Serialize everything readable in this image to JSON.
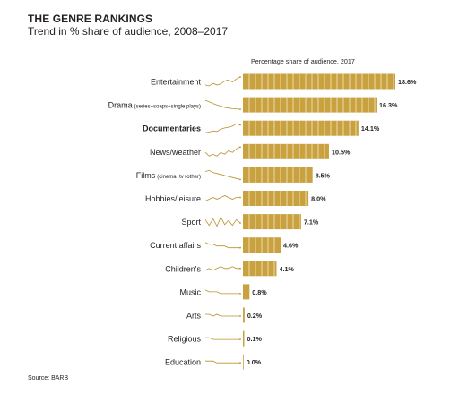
{
  "title": "THE GENRE RANKINGS",
  "subtitle": "Trend in % share of audience, 2008–2017",
  "source": "Source: BARB",
  "colors": {
    "bar": "#c9a23f",
    "bar_divider": "#ffffff",
    "spark": "#b8922f",
    "text": "#231f20"
  },
  "chart_data": {
    "type": "bar",
    "orientation": "horizontal",
    "title": "Percentage share of audience, 2017",
    "value_format": "{v}%",
    "xlim": [
      0,
      20
    ],
    "categories": [
      {
        "label": "Entertainment",
        "note": "",
        "bold": false
      },
      {
        "label": "Drama",
        "note": "(series+soaps+single plays)",
        "bold": false
      },
      {
        "label": "Documentaries",
        "note": "",
        "bold": true
      },
      {
        "label": "News/weather",
        "note": "",
        "bold": false
      },
      {
        "label": "Films",
        "note": "(cinema+tv+other)",
        "bold": false
      },
      {
        "label": "Hobbies/leisure",
        "note": "",
        "bold": false
      },
      {
        "label": "Sport",
        "note": "",
        "bold": false
      },
      {
        "label": "Current affairs",
        "note": "",
        "bold": false
      },
      {
        "label": "Children's",
        "note": "",
        "bold": false
      },
      {
        "label": "Music",
        "note": "",
        "bold": false
      },
      {
        "label": "Arts",
        "note": "",
        "bold": false
      },
      {
        "label": "Religious",
        "note": "",
        "bold": false
      },
      {
        "label": "Education",
        "note": "",
        "bold": false
      }
    ],
    "values": [
      18.6,
      16.3,
      14.1,
      10.5,
      8.5,
      8.0,
      7.1,
      4.6,
      4.1,
      0.8,
      0.2,
      0.1,
      0.0
    ],
    "trend_years": [
      2008,
      2009,
      2010,
      2011,
      2012,
      2013,
      2014,
      2015,
      2016,
      2017
    ],
    "trends": [
      [
        17.0,
        16.8,
        17.3,
        17.0,
        17.2,
        17.8,
        18.0,
        17.6,
        18.2,
        18.6
      ],
      [
        20.5,
        19.8,
        19.0,
        18.3,
        17.8,
        17.2,
        16.9,
        16.6,
        16.5,
        16.3
      ],
      [
        12.8,
        12.9,
        13.1,
        13.0,
        13.4,
        13.6,
        13.7,
        13.9,
        14.3,
        14.1
      ],
      [
        10.2,
        10.0,
        10.1,
        10.0,
        10.2,
        10.1,
        10.3,
        10.2,
        10.4,
        10.5
      ],
      [
        9.3,
        9.4,
        9.2,
        9.1,
        9.0,
        8.9,
        8.8,
        8.7,
        8.6,
        8.5
      ],
      [
        7.8,
        7.9,
        8.0,
        7.9,
        8.0,
        8.1,
        8.0,
        7.9,
        8.0,
        8.0
      ],
      [
        7.5,
        6.8,
        7.6,
        6.7,
        7.8,
        6.9,
        7.4,
        6.8,
        7.5,
        7.1
      ],
      [
        4.9,
        4.8,
        4.8,
        4.7,
        4.7,
        4.7,
        4.6,
        4.6,
        4.6,
        4.6
      ],
      [
        4.0,
        4.1,
        4.0,
        4.1,
        4.2,
        4.1,
        4.1,
        4.2,
        4.1,
        4.1
      ],
      [
        1.0,
        0.9,
        0.9,
        0.9,
        0.8,
        0.8,
        0.8,
        0.8,
        0.8,
        0.8
      ],
      [
        0.3,
        0.3,
        0.2,
        0.3,
        0.2,
        0.2,
        0.2,
        0.2,
        0.2,
        0.2
      ],
      [
        0.2,
        0.2,
        0.1,
        0.1,
        0.1,
        0.1,
        0.1,
        0.1,
        0.1,
        0.1
      ],
      [
        0.1,
        0.1,
        0.1,
        0.0,
        0.0,
        0.0,
        0.0,
        0.0,
        0.0,
        0.0
      ]
    ]
  }
}
